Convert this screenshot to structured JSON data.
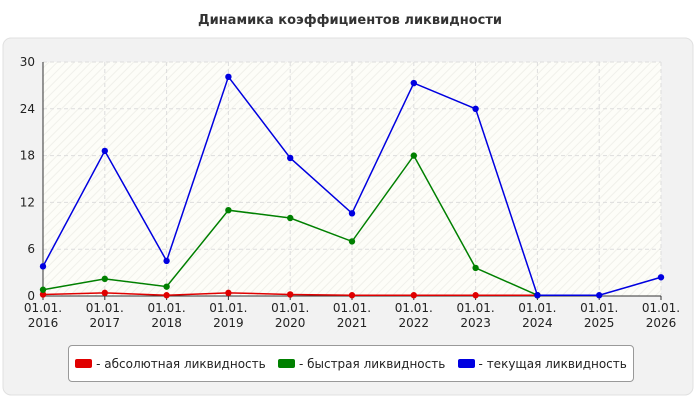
{
  "chart_data": {
    "type": "line",
    "title": "Динамика коэффициентов ликвидности",
    "categories": [
      "01.01.\n2016",
      "01.01.\n2017",
      "01.01.\n2018",
      "01.01.\n2019",
      "01.01.\n2020",
      "01.01.\n2021",
      "01.01.\n2022",
      "01.01.\n2023",
      "01.01.\n2024",
      "01.01.\n2025",
      "01.01.\n2026"
    ],
    "series": [
      {
        "name": "- абсолютная ликвидность",
        "color": "#e00000",
        "values": [
          0.2,
          0.4,
          0.1,
          0.4,
          0.2,
          0.1,
          0.1,
          0.1,
          0.1,
          null,
          null
        ]
      },
      {
        "name": "- быстрая ликвидность",
        "color": "#008000",
        "values": [
          0.8,
          2.2,
          1.2,
          11.0,
          10.0,
          7.0,
          18.0,
          3.6,
          0.1,
          null,
          null
        ]
      },
      {
        "name": "- текущая ликвидность",
        "color": "#0000e0",
        "values": [
          3.8,
          18.6,
          4.5,
          28.1,
          17.7,
          10.6,
          27.3,
          24.0,
          0.1,
          0.1,
          2.4
        ]
      }
    ],
    "ylim": [
      0,
      30
    ],
    "yticks": [
      0,
      6,
      12,
      18,
      24,
      30
    ],
    "grid": true
  }
}
